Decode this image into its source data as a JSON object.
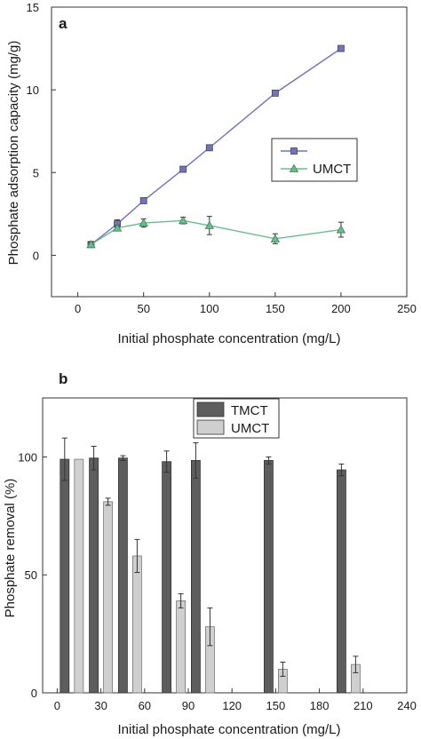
{
  "chart_data": [
    {
      "panel": "a",
      "type": "line",
      "xlabel": "Initial phosphate concentration (mg/L)",
      "ylabel": "Phosphate adsorption capacity (mg/g)",
      "xlim": [
        -20,
        250
      ],
      "ylim": [
        -2.5,
        15
      ],
      "xticks": [
        0,
        50,
        100,
        150,
        200,
        250
      ],
      "yticks": [
        0,
        5,
        10,
        15
      ],
      "legend_position": "right-middle",
      "series": [
        {
          "name": "",
          "color": "#7272c0",
          "marker": "square",
          "x": [
            10,
            30,
            50,
            80,
            100,
            150,
            200
          ],
          "y": [
            0.65,
            1.9,
            3.3,
            5.2,
            6.5,
            9.8,
            12.5
          ],
          "err": [
            0.15,
            0.25,
            0.1,
            0.1,
            0.1,
            0.1,
            0.1
          ]
        },
        {
          "name": "UMCT",
          "color": "#6cbb8c",
          "marker": "triangle",
          "x": [
            10,
            30,
            50,
            80,
            100,
            150,
            200
          ],
          "y": [
            0.65,
            1.65,
            1.95,
            2.1,
            1.8,
            1.0,
            1.55
          ],
          "err": [
            0.15,
            0.15,
            0.25,
            0.2,
            0.55,
            0.3,
            0.45
          ]
        }
      ]
    },
    {
      "panel": "b",
      "type": "bar",
      "xlabel": "Initial phosphate concentration (mg/L)",
      "ylabel": "Phosphate removal (%)",
      "xlim": [
        -10,
        240
      ],
      "ylim": [
        0,
        125
      ],
      "xticks": [
        0,
        30,
        60,
        90,
        120,
        150,
        180,
        210,
        240
      ],
      "yticks": [
        0,
        50,
        100
      ],
      "legend_position": "top-right",
      "series": [
        {
          "name": "TMCT",
          "color": "#5d5d5d",
          "x": [
            10,
            30,
            50,
            80,
            100,
            150,
            200
          ],
          "values": [
            99,
            99.5,
            99.5,
            98,
            98.5,
            98.5,
            94.5
          ],
          "err": [
            9,
            5,
            1,
            4.5,
            7.5,
            1.5,
            2.5
          ]
        },
        {
          "name": "UMCT",
          "color": "#cfcfcf",
          "x": [
            10,
            30,
            50,
            80,
            100,
            150,
            200
          ],
          "values": [
            99,
            81,
            58,
            39,
            28,
            10,
            12
          ],
          "err": [
            0,
            1.5,
            7,
            3,
            8,
            3,
            3.5
          ]
        }
      ]
    }
  ]
}
